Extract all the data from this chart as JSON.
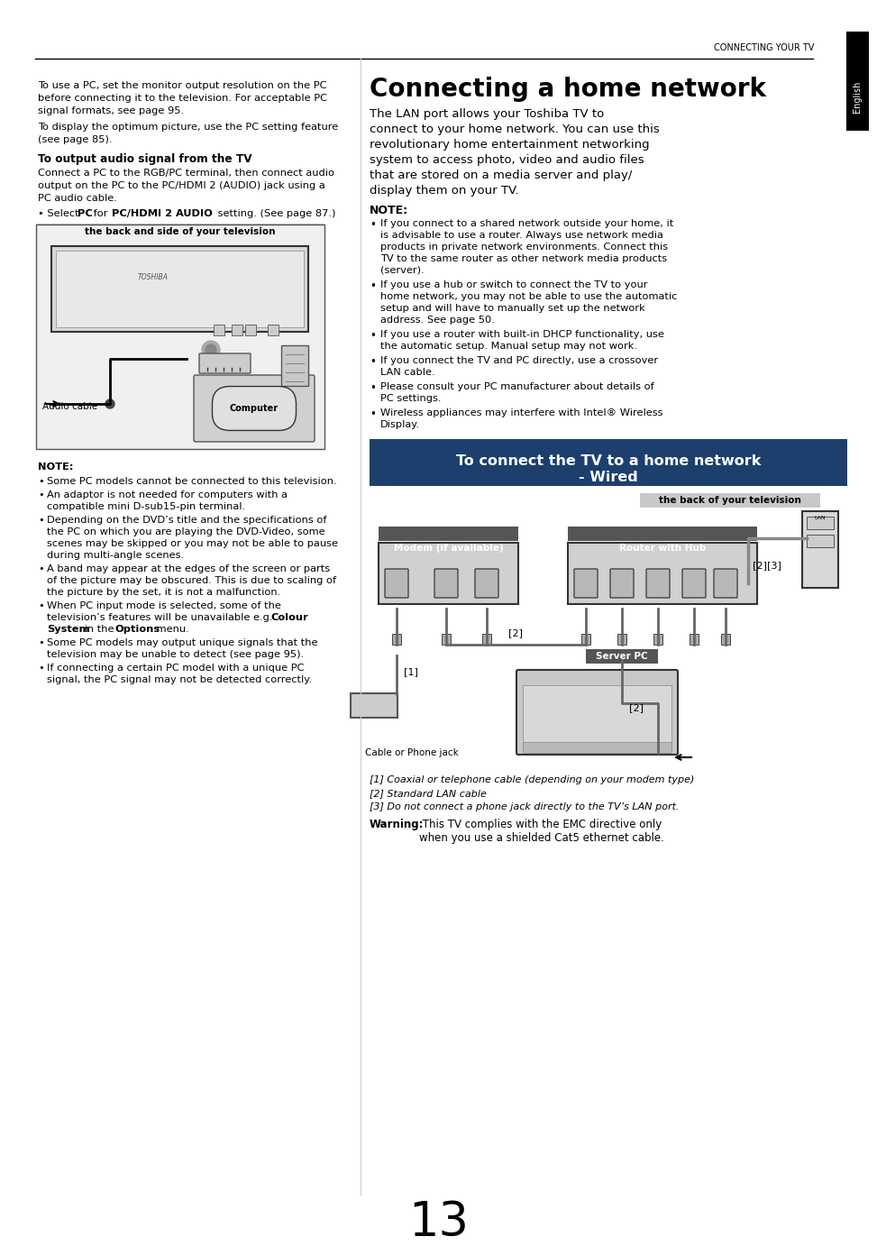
{
  "page_width": 9.54,
  "page_height": 13.51,
  "bg_color": "#ffffff",
  "header_text": "CONNECTING YOUR TV",
  "page_number": "13",
  "left_top_text1_lines": [
    "To use a PC, set the monitor output resolution on the PC",
    "before connecting it to the television. For acceptable PC",
    "signal formats, see page 95."
  ],
  "left_top_text2_lines": [
    "To display the optimum picture, use the PC setting feature",
    "(see page 85)."
  ],
  "left_subtitle": "To output audio signal from the TV",
  "left_audio_lines": [
    "Connect a PC to the RGB/PC terminal, then connect audio",
    "output on the PC to the PC/HDMI 2 (AUDIO) jack using a",
    "PC audio cable."
  ],
  "left_box_label": "the back and side of your television",
  "left_audio_cable_label": "Audio cable",
  "left_computer_label": "Computer",
  "note_left_title": "NOTE:",
  "note_left_bullets": [
    "Some PC models cannot be connected to this television.",
    "An adaptor is not needed for computers with a\ncompatible mini D-sub15-pin terminal.",
    "Depending on the DVD’s title and the specifications of\nthe PC on which you are playing the DVD-Video, some\nscenes may be skipped or you may not be able to pause\nduring multi-angle scenes.",
    "A band may appear at the edges of the screen or parts\nof the picture may be obscured. This is due to scaling of\nthe picture by the set, it is not a malfunction.",
    "When PC input mode is selected, some of the\ntelevision’s features will be unavailable e.g. Colour\nSystem in the Options menu.",
    "Some PC models may output unique signals that the\ntelevision may be unable to detect (see page 95).",
    "If connecting a certain PC model with a unique PC\nsignal, the PC signal may not be detected correctly."
  ],
  "note_left_bold_parts": [
    [],
    [],
    [],
    [],
    [
      "Colour",
      "System",
      "Options"
    ],
    [],
    []
  ],
  "title_right": "Connecting a home network",
  "intro_lines": [
    "The LAN port allows your Toshiba TV to",
    "connect to your home network. You can use this",
    "revolutionary home entertainment networking",
    "system to access photo, video and audio files",
    "that are stored on a media server and play/",
    "display them on your TV."
  ],
  "note_title_right": "NOTE:",
  "note_bullets_right": [
    "If you connect to a shared network outside your home, it\nis advisable to use a router. Always use network media\nproducts in private network environments. Connect this\nTV to the same router as other network media products\n(server).",
    "If you use a hub or switch to connect the TV to your\nhome network, you may not be able to use the automatic\nsetup and will have to manually set up the network\naddress. See page 50.",
    "If you use a router with built-in DHCP functionality, use\nthe automatic setup. Manual setup may not work.",
    "If you connect the TV and PC directly, use a crossover\nLAN cable.",
    "Please consult your PC manufacturer about details of\nPC settings.",
    "Wireless appliances may interfere with Intel® Wireless\nDisplay."
  ],
  "section_header_line1": "To connect the TV to a home network",
  "section_header_line2": "- Wired",
  "section_header_bg": "#1c3f6e",
  "diagram_label_tv_back": "the back of your television",
  "diagram_label_modem": "Modem (if available)",
  "diagram_label_router": "Router with Hub",
  "diagram_label_server": "Server PC",
  "diagram_label_cable": "Cable or Phone jack",
  "footnote1": "[1] Coaxial or telephone cable (depending on your modem type)",
  "footnote2": "[2] Standard LAN cable",
  "footnote3": "[3] Do not connect a phone jack directly to the TV’s LAN port.",
  "warning_bold": "Warning:",
  "warning_rest": " This TV complies with the EMC directive only\nwhen you use a shielded Cat5 ethernet cable."
}
